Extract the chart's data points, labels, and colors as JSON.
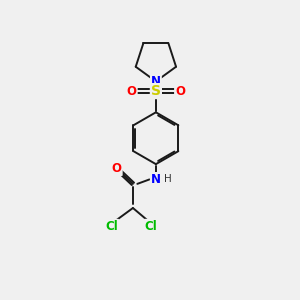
{
  "bg_color": "#f0f0f0",
  "bond_color": "#1a1a1a",
  "atom_colors": {
    "N": "#0000ff",
    "O": "#ff0000",
    "S": "#cccc00",
    "Cl": "#00bb00"
  },
  "lw": 1.4,
  "fs": 8.5,
  "dbo": 0.055
}
